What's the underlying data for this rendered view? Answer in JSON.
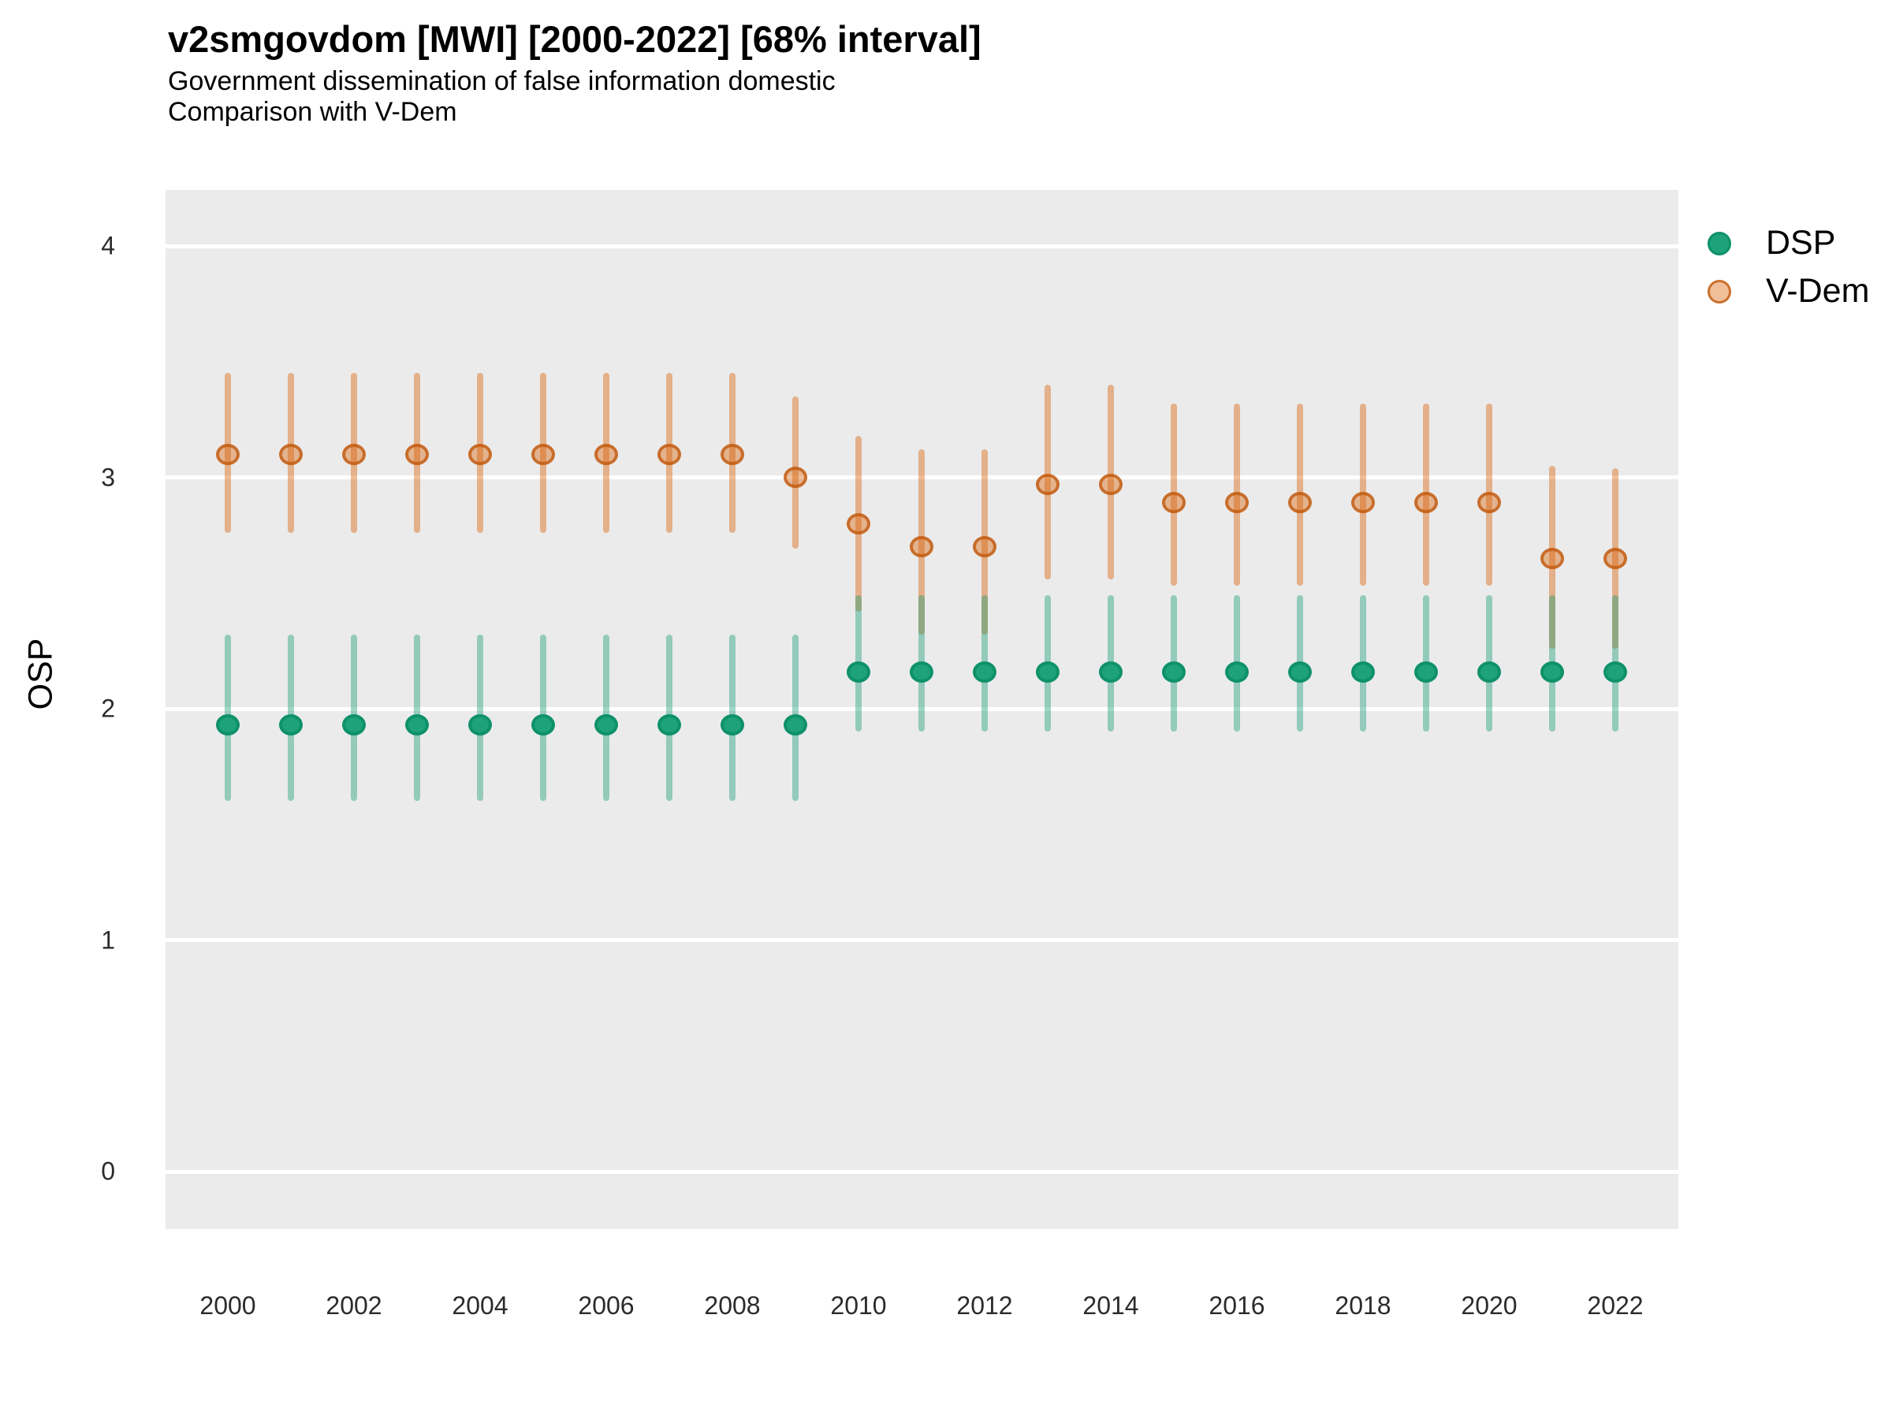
{
  "header": {
    "title": "v2smgovdom [MWI] [2000-2022] [68% interval]",
    "subtitle_line1": "Government dissemination of false information domestic",
    "subtitle_line2": "Comparison with V-Dem"
  },
  "legend": {
    "items": [
      {
        "label": "DSP"
      },
      {
        "label": "V-Dem"
      }
    ]
  },
  "colors": {
    "panel_bg": "#EBEBEB",
    "grid": "#FFFFFF",
    "dsp_point_fill": "#1EA27A",
    "dsp_point_stroke": "#0E9169",
    "dsp_bar": "rgba(27,158,119,0.42)",
    "vdem_point_fill": "rgba(217,95,2,0.40)",
    "vdem_point_stroke": "rgba(190,85,10,0.75)",
    "vdem_bar": "rgba(217,95,2,0.42)"
  },
  "chart_data": {
    "type": "scatter",
    "variant": "pointrange",
    "title": "v2smgovdom [MWI] [2000-2022] [68% interval]",
    "subtitle": [
      "Government dissemination of false information domestic",
      "Comparison with V-Dem"
    ],
    "interval": "68%",
    "country": "MWI",
    "xlabel": "",
    "ylabel": "OSP",
    "yticks": [
      0,
      1,
      2,
      3,
      4
    ],
    "xticks": [
      2000,
      2002,
      2004,
      2006,
      2008,
      2010,
      2012,
      2014,
      2016,
      2018,
      2020,
      2022
    ],
    "ylim": [
      -0.25,
      4.25
    ],
    "xlim": [
      1999,
      2023
    ],
    "grid": "major horizontal white lines on gray panel",
    "legend_position": "top-right outside panel",
    "series": [
      {
        "name": "DSP",
        "color": "#1B9E77",
        "points": [
          {
            "year": 2000,
            "value": 1.93,
            "lo": 1.6,
            "hi": 2.32
          },
          {
            "year": 2001,
            "value": 1.93,
            "lo": 1.6,
            "hi": 2.32
          },
          {
            "year": 2002,
            "value": 1.93,
            "lo": 1.6,
            "hi": 2.32
          },
          {
            "year": 2003,
            "value": 1.93,
            "lo": 1.6,
            "hi": 2.32
          },
          {
            "year": 2004,
            "value": 1.93,
            "lo": 1.6,
            "hi": 2.32
          },
          {
            "year": 2005,
            "value": 1.93,
            "lo": 1.6,
            "hi": 2.32
          },
          {
            "year": 2006,
            "value": 1.93,
            "lo": 1.6,
            "hi": 2.32
          },
          {
            "year": 2007,
            "value": 1.93,
            "lo": 1.6,
            "hi": 2.32
          },
          {
            "year": 2008,
            "value": 1.93,
            "lo": 1.6,
            "hi": 2.32
          },
          {
            "year": 2009,
            "value": 1.93,
            "lo": 1.6,
            "hi": 2.32
          },
          {
            "year": 2010,
            "value": 2.16,
            "lo": 1.9,
            "hi": 2.49
          },
          {
            "year": 2011,
            "value": 2.16,
            "lo": 1.9,
            "hi": 2.49
          },
          {
            "year": 2012,
            "value": 2.16,
            "lo": 1.9,
            "hi": 2.49
          },
          {
            "year": 2013,
            "value": 2.16,
            "lo": 1.9,
            "hi": 2.49
          },
          {
            "year": 2014,
            "value": 2.16,
            "lo": 1.9,
            "hi": 2.49
          },
          {
            "year": 2015,
            "value": 2.16,
            "lo": 1.9,
            "hi": 2.49
          },
          {
            "year": 2016,
            "value": 2.16,
            "lo": 1.9,
            "hi": 2.49
          },
          {
            "year": 2017,
            "value": 2.16,
            "lo": 1.9,
            "hi": 2.49
          },
          {
            "year": 2018,
            "value": 2.16,
            "lo": 1.9,
            "hi": 2.49
          },
          {
            "year": 2019,
            "value": 2.16,
            "lo": 1.9,
            "hi": 2.49
          },
          {
            "year": 2020,
            "value": 2.16,
            "lo": 1.9,
            "hi": 2.49
          },
          {
            "year": 2021,
            "value": 2.16,
            "lo": 1.9,
            "hi": 2.49
          },
          {
            "year": 2022,
            "value": 2.16,
            "lo": 1.9,
            "hi": 2.49
          }
        ]
      },
      {
        "name": "V-Dem",
        "color": "#D95F02",
        "points": [
          {
            "year": 2000,
            "value": 3.1,
            "lo": 2.76,
            "hi": 3.45
          },
          {
            "year": 2001,
            "value": 3.1,
            "lo": 2.76,
            "hi": 3.45
          },
          {
            "year": 2002,
            "value": 3.1,
            "lo": 2.76,
            "hi": 3.45
          },
          {
            "year": 2003,
            "value": 3.1,
            "lo": 2.76,
            "hi": 3.45
          },
          {
            "year": 2004,
            "value": 3.1,
            "lo": 2.76,
            "hi": 3.45
          },
          {
            "year": 2005,
            "value": 3.1,
            "lo": 2.76,
            "hi": 3.45
          },
          {
            "year": 2006,
            "value": 3.1,
            "lo": 2.76,
            "hi": 3.45
          },
          {
            "year": 2007,
            "value": 3.1,
            "lo": 2.76,
            "hi": 3.45
          },
          {
            "year": 2008,
            "value": 3.1,
            "lo": 2.76,
            "hi": 3.45
          },
          {
            "year": 2009,
            "value": 3.0,
            "lo": 2.69,
            "hi": 3.35
          },
          {
            "year": 2010,
            "value": 2.8,
            "lo": 2.42,
            "hi": 3.18
          },
          {
            "year": 2011,
            "value": 2.7,
            "lo": 2.32,
            "hi": 3.12
          },
          {
            "year": 2012,
            "value": 2.7,
            "lo": 2.32,
            "hi": 3.12
          },
          {
            "year": 2013,
            "value": 2.97,
            "lo": 2.56,
            "hi": 3.4
          },
          {
            "year": 2014,
            "value": 2.97,
            "lo": 2.56,
            "hi": 3.4
          },
          {
            "year": 2015,
            "value": 2.89,
            "lo": 2.53,
            "hi": 3.32
          },
          {
            "year": 2016,
            "value": 2.89,
            "lo": 2.53,
            "hi": 3.32
          },
          {
            "year": 2017,
            "value": 2.89,
            "lo": 2.53,
            "hi": 3.32
          },
          {
            "year": 2018,
            "value": 2.89,
            "lo": 2.53,
            "hi": 3.32
          },
          {
            "year": 2019,
            "value": 2.89,
            "lo": 2.53,
            "hi": 3.32
          },
          {
            "year": 2020,
            "value": 2.89,
            "lo": 2.53,
            "hi": 3.32
          },
          {
            "year": 2021,
            "value": 2.65,
            "lo": 2.26,
            "hi": 3.05
          },
          {
            "year": 2022,
            "value": 2.65,
            "lo": 2.26,
            "hi": 3.04
          }
        ]
      }
    ]
  }
}
